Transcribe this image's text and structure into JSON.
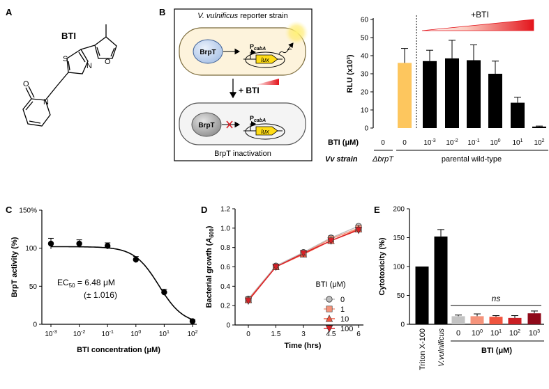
{
  "panels": {
    "A": {
      "label": "A",
      "compound_name": "BTI"
    },
    "B": {
      "label": "B",
      "diagram": {
        "title_italic": "V. vulnificus",
        "title_rest": " reporter strain",
        "protein": "BrpT",
        "promoter_main": "P",
        "promoter_sub": "cabA",
        "gene": "lux",
        "treatment": "+ BTI",
        "caption": "BrpT inactivation"
      }
    },
    "C": {
      "label": "C"
    },
    "D": {
      "label": "D"
    },
    "E": {
      "label": "E"
    }
  },
  "chart_data": [
    {
      "id": "B",
      "type": "bar",
      "ylabel": "RLU (x10³)",
      "ylim": [
        0,
        60
      ],
      "yticks": [
        0,
        10,
        20,
        30,
        40,
        50,
        60
      ],
      "values": [
        0,
        36,
        37,
        38.5,
        37.5,
        30,
        14,
        0.8
      ],
      "errors": [
        0,
        8,
        6,
        10,
        8.5,
        7,
        3,
        0.3
      ],
      "colors": [
        "#000000",
        "#fdc65e",
        "#000000",
        "#000000",
        "#000000",
        "#000000",
        "#000000",
        "#000000"
      ],
      "bti_row_label": "BTI (μM)",
      "bti_labels": [
        {
          "base": "0",
          "exp": ""
        },
        {
          "base": "0",
          "exp": ""
        },
        {
          "base": "10",
          "exp": "-3"
        },
        {
          "base": "10",
          "exp": "-2"
        },
        {
          "base": "10",
          "exp": "-1"
        },
        {
          "base": "10",
          "exp": "0"
        },
        {
          "base": "10",
          "exp": "1"
        },
        {
          "base": "10",
          "exp": "2"
        }
      ],
      "strain_row_label": "Vv strain",
      "strain_mutant": "ΔbrpT",
      "strain_parental": "parental wild-type",
      "gradient_label": "+BTI"
    },
    {
      "id": "C",
      "type": "scatter",
      "xlabel": "BTI concentration (μM)",
      "ylabel": "BrpT activity (%)",
      "x_log10": [
        -3,
        -2,
        -1,
        0,
        1,
        2
      ],
      "y": [
        106,
        106,
        103,
        85,
        42,
        4
      ],
      "yerr": [
        7,
        5,
        4,
        4,
        4,
        2
      ],
      "ylim": [
        0,
        150
      ],
      "yticks": [
        0,
        50,
        100,
        150
      ],
      "ytick_labels": [
        "0",
        "50",
        "100",
        "150%"
      ],
      "xtick_labels": [
        {
          "base": "10",
          "exp": "-3"
        },
        {
          "base": "10",
          "exp": "-2"
        },
        {
          "base": "10",
          "exp": "-1"
        },
        {
          "base": "10",
          "exp": "0"
        },
        {
          "base": "10",
          "exp": "1"
        },
        {
          "base": "10",
          "exp": "2"
        }
      ],
      "fit": {
        "top": 102,
        "bottom": 0,
        "ec50": 6.48,
        "hill": 1
      },
      "ec50_label": "EC",
      "ec50_sub": "50",
      "ec50_value": " = 6.48 μM",
      "ec50_error": "(± 1.016)"
    },
    {
      "id": "D",
      "type": "line",
      "xlabel": "Time (hrs)",
      "ylabel_main": "Bacterial growth (",
      "ylabel_var": "A",
      "ylabel_sub": "600",
      "ylabel_end": ")",
      "x": [
        0,
        1.5,
        3,
        4.5,
        6
      ],
      "xticks": [
        "0",
        "1.5",
        "3",
        "4.5",
        "6"
      ],
      "xlim": [
        -0.5,
        6.3
      ],
      "ylim": [
        0,
        1.2
      ],
      "yticks": [
        "0",
        "0.2",
        "0.4",
        "0.6",
        "0.8",
        "1.0",
        "1.2"
      ],
      "legend_title": "BTI (μM)",
      "series": [
        {
          "name": "0",
          "values": [
            0.27,
            0.61,
            0.75,
            0.9,
            1.02
          ],
          "color": "#bdbdbd",
          "marker": "circle"
        },
        {
          "name": "1",
          "values": [
            0.26,
            0.6,
            0.74,
            0.89,
            1.0
          ],
          "color": "#f5947c",
          "marker": "square"
        },
        {
          "name": "10",
          "values": [
            0.26,
            0.6,
            0.73,
            0.87,
            0.99
          ],
          "color": "#f0553f",
          "marker": "triangle-up"
        },
        {
          "name": "100",
          "values": [
            0.25,
            0.6,
            0.74,
            0.87,
            0.98
          ],
          "color": "#d81f26",
          "marker": "triangle-down"
        }
      ]
    },
    {
      "id": "E",
      "type": "bar",
      "ylabel": "Cytotoxicity (%)",
      "ylim": [
        0,
        200
      ],
      "yticks": [
        0,
        50,
        100,
        150,
        200
      ],
      "categories": [
        {
          "base": "Triton X-100",
          "exp": "",
          "rot": true,
          "ital": false
        },
        {
          "base": "V.vulnificus",
          "exp": "",
          "rot": true,
          "ital": true
        },
        {
          "base": "0",
          "exp": "",
          "rot": false,
          "ital": false
        },
        {
          "base": "10",
          "exp": "0",
          "rot": false,
          "ital": false
        },
        {
          "base": "10",
          "exp": "1",
          "rot": false,
          "ital": false
        },
        {
          "base": "10",
          "exp": "2",
          "rot": false,
          "ital": false
        },
        {
          "base": "10",
          "exp": "3",
          "rot": false,
          "ital": false
        }
      ],
      "values": [
        100,
        152,
        14,
        14,
        13,
        11,
        19
      ],
      "errors": [
        0,
        12,
        2,
        4,
        2,
        4,
        4
      ],
      "colors": [
        "#000000",
        "#000000",
        "#c3c3c3",
        "#f5947c",
        "#f0553f",
        "#cb1f24",
        "#8f0a1a"
      ],
      "group_label": "BTI (μM)",
      "ns_label": "ns"
    }
  ]
}
